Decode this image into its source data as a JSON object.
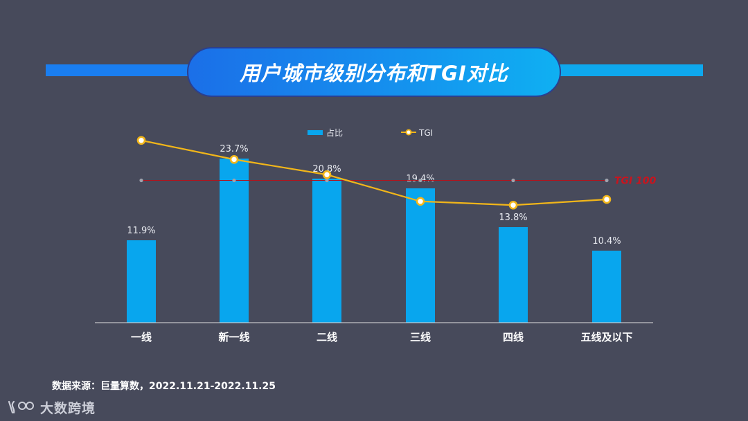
{
  "title": "用户城市级别分布和TGI对比",
  "source_text": "数据来源：巨量算数，2022.11.21-2022.11.25",
  "logo_text": "大数跨境",
  "colors": {
    "background": "#474a5b",
    "bar": "#08a6ee",
    "line": "#f2b619",
    "reference": "#b3121c",
    "axis": "#e0e0e0"
  },
  "chart_data": {
    "type": "bar",
    "categories": [
      "一线",
      "新一线",
      "二线",
      "三线",
      "四线",
      "五线及以下"
    ],
    "series": [
      {
        "name": "占比",
        "type": "bar",
        "values": [
          11.9,
          23.7,
          20.8,
          19.4,
          13.8,
          10.4
        ],
        "labels": [
          "11.9%",
          "23.7%",
          "20.8%",
          "19.4%",
          "13.8%",
          "10.4%"
        ]
      },
      {
        "name": "TGI",
        "type": "line",
        "values": [
          121,
          111,
          103,
          89,
          87,
          90
        ]
      }
    ],
    "reference_line": {
      "label": "TGI 100",
      "value": 100
    },
    "bar_ylim": [
      0,
      30
    ],
    "tgi_ylim": [
      50,
      130
    ],
    "legend_position": "top-center",
    "grid": false
  }
}
